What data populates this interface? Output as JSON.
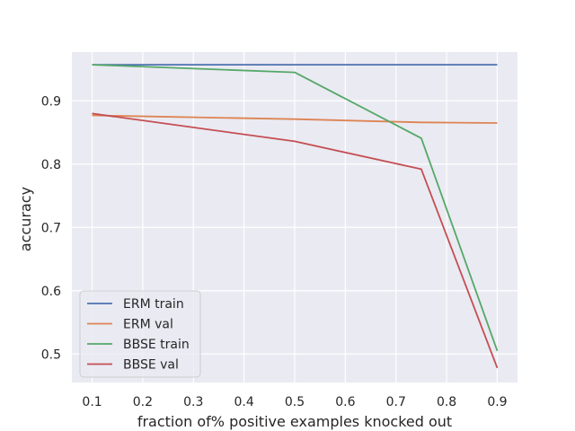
{
  "chart_data": {
    "type": "line",
    "xlabel": "fraction of% positive examples knocked out",
    "ylabel": "accuracy",
    "xlim": [
      0.06,
      0.94
    ],
    "ylim": [
      0.455,
      0.977
    ],
    "xticks": [
      0.1,
      0.2,
      0.3,
      0.4,
      0.5,
      0.6,
      0.7,
      0.8,
      0.9
    ],
    "yticks": [
      0.5,
      0.6,
      0.7,
      0.8,
      0.9
    ],
    "grid": true,
    "legend_position": "lower-left",
    "series": [
      {
        "name": "ERM train",
        "color": "#4c72b0",
        "x": [
          0.1,
          0.5,
          0.75,
          0.9
        ],
        "y": [
          0.957,
          0.957,
          0.957,
          0.957
        ]
      },
      {
        "name": "ERM val",
        "color": "#dd8452",
        "x": [
          0.1,
          0.5,
          0.75,
          0.9
        ],
        "y": [
          0.877,
          0.871,
          0.866,
          0.865
        ]
      },
      {
        "name": "BBSE train",
        "color": "#55a868",
        "x": [
          0.1,
          0.5,
          0.75,
          0.9
        ],
        "y": [
          0.957,
          0.945,
          0.841,
          0.505
        ]
      },
      {
        "name": "BBSE val",
        "color": "#c44e52",
        "x": [
          0.1,
          0.5,
          0.75,
          0.9
        ],
        "y": [
          0.88,
          0.836,
          0.792,
          0.478
        ]
      }
    ]
  }
}
